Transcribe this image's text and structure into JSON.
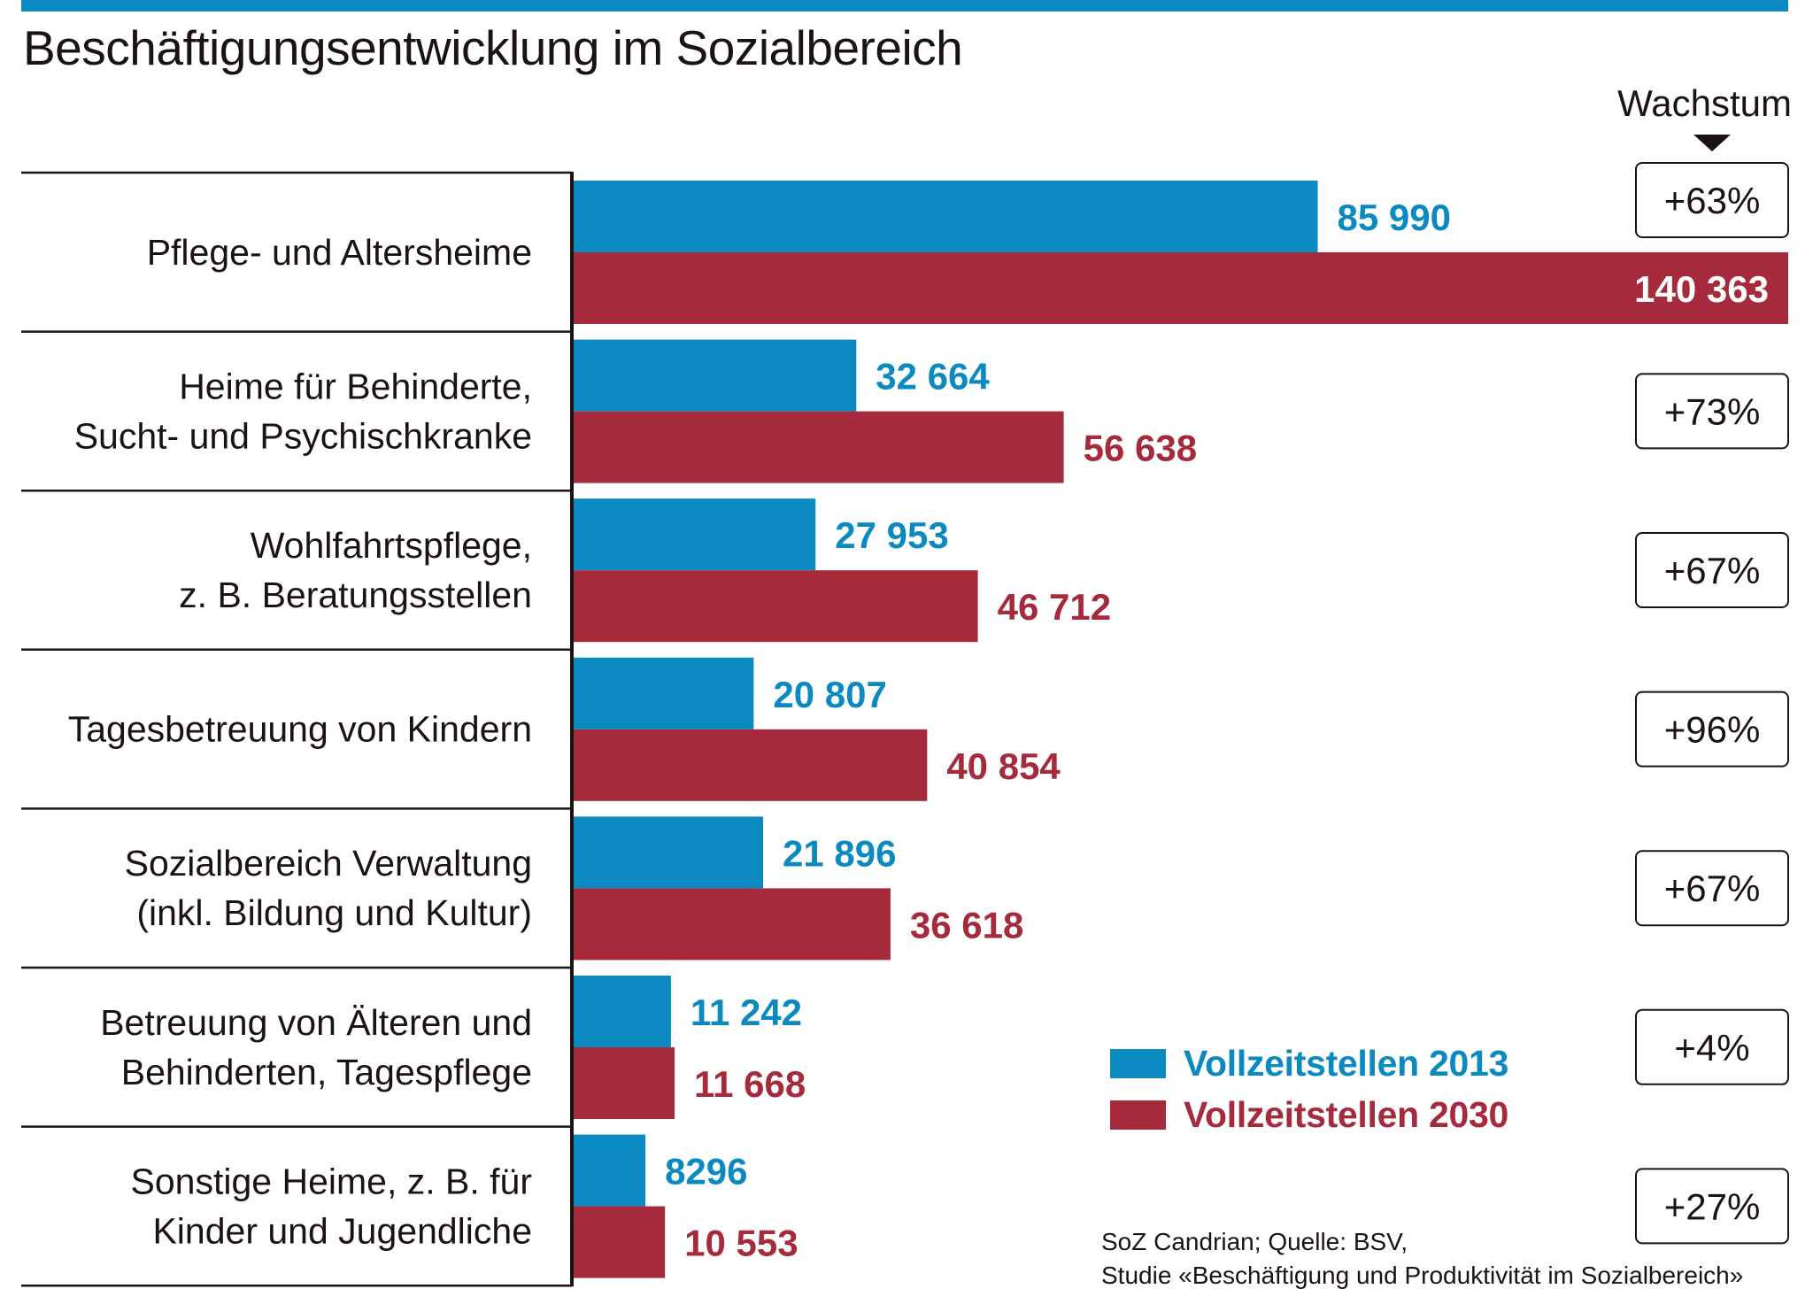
{
  "header": {
    "title": "Beschäftigungsentwicklung im Sozialbereich",
    "growth_heading": "Wachstum",
    "growth_icon": "down-triangle-icon"
  },
  "colors": {
    "accent_bar": "#0a8ac0",
    "series_2013": "#0a8ac0",
    "series_2030": "#a52b3c",
    "text": "#1a1311",
    "inside_label": "#ffffff"
  },
  "chart_data": {
    "type": "bar",
    "orientation": "horizontal",
    "title": "Beschäftigungsentwicklung im Sozialbereich",
    "xlabel": "",
    "ylabel": "",
    "xlim": [
      0,
      140363
    ],
    "grid": false,
    "legend_position": "bottom-right",
    "categories": [
      [
        "Pflege- und Altersheime"
      ],
      [
        "Heime für Behinderte,",
        "Sucht- und Psychischkranke"
      ],
      [
        "Wohlfahrtspflege,",
        "z. B. Beratungsstellen"
      ],
      [
        "Tagesbetreuung von Kindern"
      ],
      [
        "Sozialbereich Verwaltung",
        "(inkl. Bildung und Kultur)"
      ],
      [
        "Betreuung von Älteren und",
        "Behinderten, Tagespflege"
      ],
      [
        "Sonstige Heime, z. B. für",
        "Kinder und Jugendliche"
      ]
    ],
    "series": [
      {
        "name": "Vollzeitstellen 2013",
        "values": [
          85990,
          32664,
          27953,
          20807,
          21896,
          11242,
          8296
        ],
        "labels": [
          "85 990",
          "32 664",
          "27 953",
          "20 807",
          "21 896",
          "11 242",
          "8296"
        ]
      },
      {
        "name": "Vollzeitstellen 2030",
        "values": [
          140363,
          56638,
          46712,
          40854,
          36618,
          11668,
          10553
        ],
        "labels": [
          "140 363",
          "56 638",
          "46 712",
          "40 854",
          "36 618",
          "11 668",
          "10 553"
        ]
      }
    ],
    "growth": {
      "heading": "Wachstum",
      "values": [
        "+63%",
        "+73%",
        "+67%",
        "+96%",
        "+67%",
        "+4%",
        "+27%"
      ]
    }
  },
  "legend": {
    "items": [
      {
        "label": "Vollzeitstellen 2013",
        "color": "#0a8ac0"
      },
      {
        "label": "Vollzeitstellen 2030",
        "color": "#a52b3c"
      }
    ]
  },
  "source": {
    "line1": "SoZ Candrian; Quelle: BSV,",
    "line2": "Studie «Beschäftigung und Produktivität im Sozialbereich»"
  }
}
